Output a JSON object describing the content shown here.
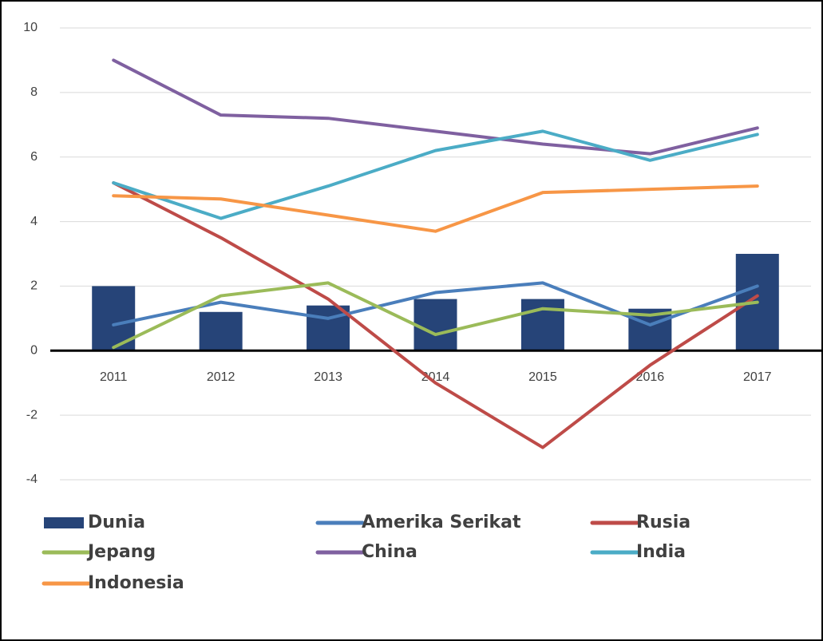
{
  "chart_data": {
    "type": "combo",
    "categories": [
      "2011",
      "2012",
      "2013",
      "2014",
      "2015",
      "2016",
      "2017"
    ],
    "series": [
      {
        "name": "Dunia",
        "type": "bar",
        "color": "#264478",
        "values": [
          2.0,
          1.2,
          1.4,
          1.6,
          1.6,
          1.3,
          3.0
        ]
      },
      {
        "name": "Amerika Serikat",
        "type": "line",
        "color": "#4a7ebb",
        "values": [
          0.8,
          1.5,
          1.0,
          1.8,
          2.1,
          0.8,
          2.0
        ]
      },
      {
        "name": "Rusia",
        "type": "line",
        "color": "#be4b48",
        "values": [
          5.2,
          3.5,
          1.6,
          -1.0,
          -3.0,
          -0.45,
          1.7
        ]
      },
      {
        "name": "Jepang",
        "type": "line",
        "color": "#9bbb59",
        "values": [
          0.1,
          1.7,
          2.1,
          0.5,
          1.3,
          1.1,
          1.5
        ]
      },
      {
        "name": "China",
        "type": "line",
        "color": "#7f60a0",
        "values": [
          9.0,
          7.3,
          7.2,
          6.8,
          6.4,
          6.1,
          6.9
        ]
      },
      {
        "name": "India",
        "type": "line",
        "color": "#4bacc6",
        "values": [
          5.2,
          4.1,
          5.1,
          6.2,
          6.8,
          5.9,
          6.7
        ]
      },
      {
        "name": "Indonesia",
        "type": "line",
        "color": "#f79646",
        "values": [
          4.8,
          4.7,
          4.2,
          3.7,
          4.9,
          5.0,
          5.1
        ]
      }
    ],
    "ylim": [
      -4,
      10
    ],
    "yticks": [
      -4,
      -2,
      0,
      2,
      4,
      6,
      8,
      10
    ],
    "grid": true,
    "legend": "bottom"
  }
}
